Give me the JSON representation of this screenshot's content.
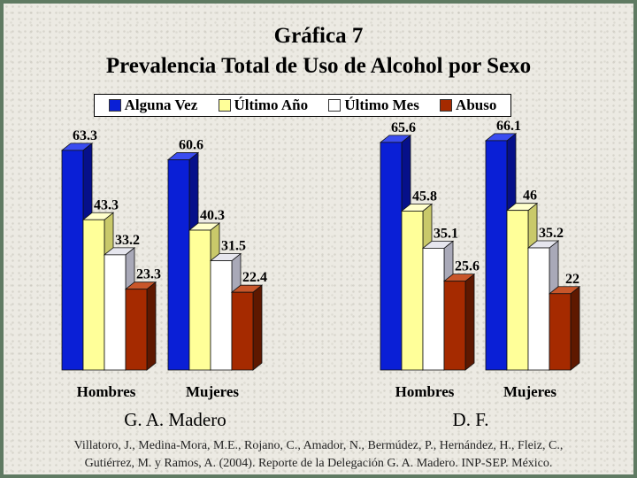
{
  "title_line1": "Gráfica 7",
  "title_line2": "Prevalencia Total de Uso de Alcohol por Sexo",
  "citation_line1": "Villatoro, J., Medina-Mora, M.E., Rojano, C., Amador, N., Bermúdez, P., Hernández, H., Fleiz, C.,",
  "citation_line2": "Gutiérrez, M. y Ramos, A. (2004). Reporte de la Delegación G. A. Madero. INP-SEP. México.",
  "chart_data": {
    "type": "bar",
    "title": "Gráfica 7 Prevalencia Total de Uso de Alcohol por Sexo",
    "legend_position": "top",
    "grid": false,
    "ylim": [
      0,
      70
    ],
    "groups": [
      {
        "name": "G. A. Madero",
        "categories": [
          "Hombres",
          "Mujeres"
        ]
      },
      {
        "name": "D. F.",
        "categories": [
          "Hombres",
          "Mujeres"
        ]
      }
    ],
    "categories": [
      "Hombres",
      "Mujeres",
      "Hombres",
      "Mujeres"
    ],
    "series": [
      {
        "name": "Alguna Vez",
        "color": "#0a1fd6",
        "values": [
          63.3,
          60.6,
          65.6,
          66.1
        ]
      },
      {
        "name": "Último Año",
        "color": "#ffff99",
        "values": [
          43.3,
          40.3,
          45.8,
          46
        ]
      },
      {
        "name": "Último Mes",
        "color": "#ffffff",
        "values": [
          33.2,
          31.5,
          35.1,
          35.2
        ]
      },
      {
        "name": "Abuso",
        "color": "#a52a00",
        "values": [
          23.3,
          22.4,
          25.6,
          22
        ]
      }
    ]
  }
}
